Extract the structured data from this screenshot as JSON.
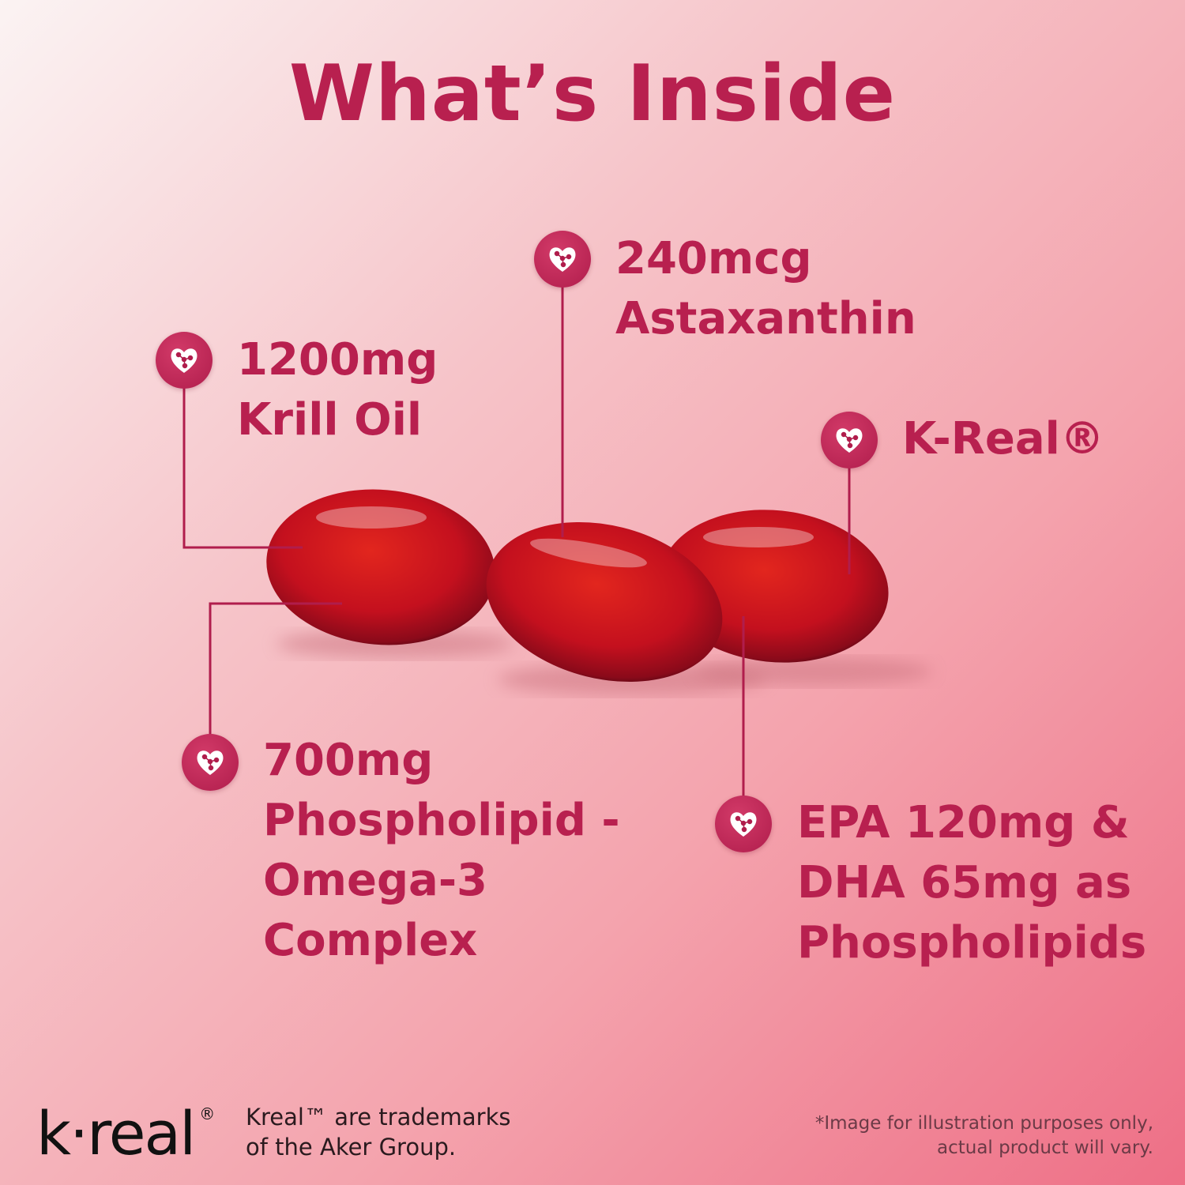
{
  "title": "What’s Inside",
  "colors": {
    "accent": "#b8204f",
    "capsule": "#c4101e"
  },
  "icon": "heart-molecule-icon",
  "callouts": [
    {
      "lines": [
        "1200mg",
        "Krill Oil"
      ]
    },
    {
      "lines": [
        "240mcg",
        "Astaxanthin"
      ]
    },
    {
      "lines": [
        "K-Real®"
      ]
    },
    {
      "lines": [
        "700mg",
        "Phospholipid -",
        "Omega-3",
        "Complex"
      ]
    },
    {
      "lines": [
        "EPA 120mg &",
        "DHA 65mg as",
        "Phospholipids"
      ]
    }
  ],
  "footer": {
    "logo": "k·real",
    "trademark": [
      "Kreal™ are trademarks",
      "of the Aker Group."
    ],
    "disclaimer": [
      "*Image for illustration purposes only,",
      "actual product will vary."
    ]
  }
}
